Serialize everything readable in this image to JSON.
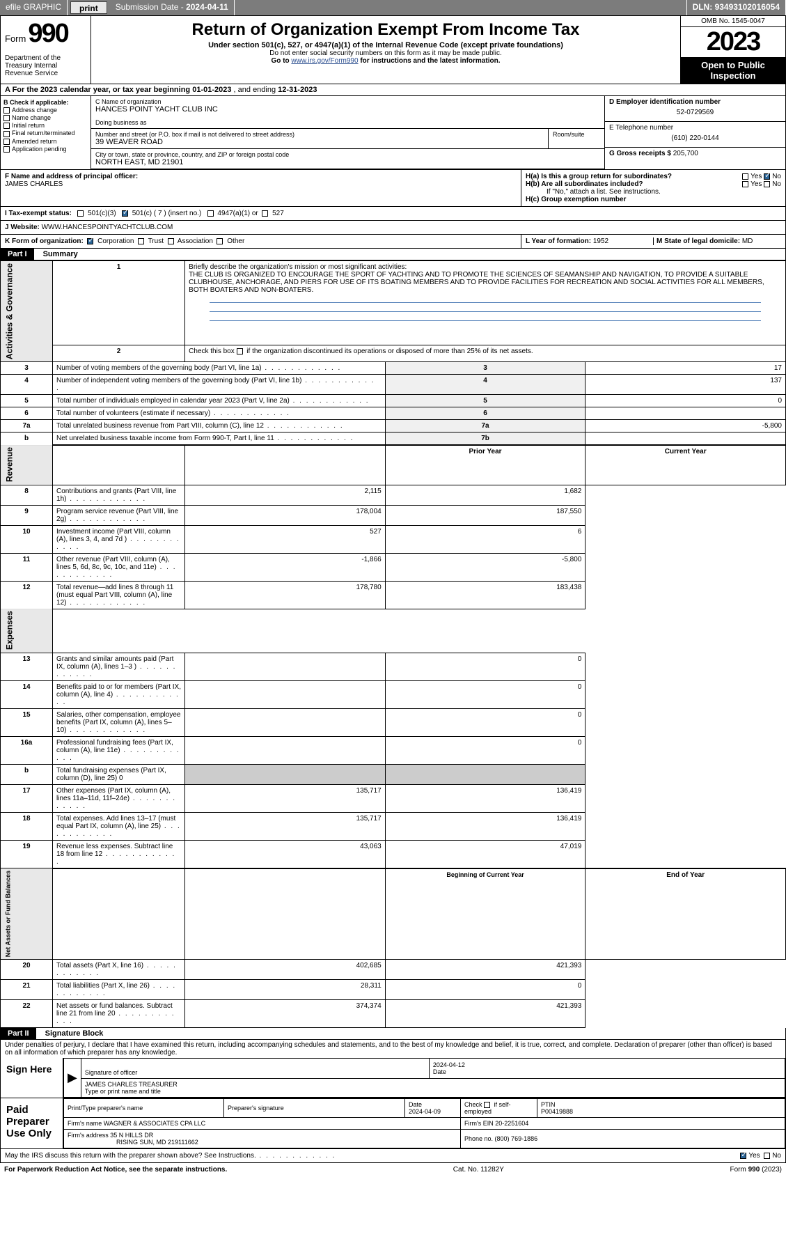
{
  "topbar": {
    "efile": "efile GRAPHIC",
    "print": "print",
    "sub_label": "Submission Date - ",
    "sub_date": "2024-04-11",
    "dln_label": "DLN: ",
    "dln": "93493102016054"
  },
  "header": {
    "form_word": "Form",
    "form_num": "990",
    "dept": "Department of the Treasury\nInternal Revenue Service",
    "title": "Return of Organization Exempt From Income Tax",
    "sub1": "Under section 501(c), 527, or 4947(a)(1) of the Internal Revenue Code (except private foundations)",
    "sub2": "Do not enter social security numbers on this form as it may be made public.",
    "sub3_pre": "Go to ",
    "sub3_link": "www.irs.gov/Form990",
    "sub3_post": " for instructions and the latest information.",
    "omb": "OMB No. 1545-0047",
    "year": "2023",
    "open": "Open to Public Inspection"
  },
  "line_a": {
    "text": "A For the 2023 calendar year, or tax year beginning ",
    "begin": "01-01-2023",
    "mid": " , and ending ",
    "end": "12-31-2023"
  },
  "col_b": {
    "hdr": "B Check if applicable:",
    "items": [
      "Address change",
      "Name change",
      "Initial return",
      "Final return/terminated",
      "Amended return",
      "Application pending"
    ]
  },
  "col_c": {
    "name_label": "C Name of organization",
    "name": "HANCES POINT YACHT CLUB INC",
    "dba_label": "Doing business as",
    "dba": "",
    "addr_label": "Number and street (or P.O. box if mail is not delivered to street address)",
    "room_label": "Room/suite",
    "addr": "39 WEAVER ROAD",
    "city_label": "City or town, state or province, country, and ZIP or foreign postal code",
    "city": "NORTH EAST, MD  21901"
  },
  "col_d": {
    "ein_label": "D Employer identification number",
    "ein": "52-0729569",
    "tel_label": "E Telephone number",
    "tel": "(610) 220-0144",
    "gross_label": "G Gross receipts $ ",
    "gross": "205,700"
  },
  "f_block": {
    "label": "F Name and address of principal officer:",
    "name": "JAMES CHARLES"
  },
  "h_block": {
    "a_label": "H(a)  Is this a group return for subordinates?",
    "b_label": "H(b)  Are all subordinates included?",
    "b_note": "If \"No,\" attach a list. See instructions.",
    "c_label": "H(c)  Group exemption number ",
    "yes": "Yes",
    "no": "No"
  },
  "i_row": {
    "label": "I   Tax-exempt status:",
    "o1": "501(c)(3)",
    "o2": "501(c) ( 7 ) (insert no.)",
    "o3": "4947(a)(1) or",
    "o4": "527"
  },
  "j_row": {
    "label": "J   Website: ",
    "val": "WWW.HANCESPOINTYACHTCLUB.COM"
  },
  "k_row": {
    "label": "K Form of organization:",
    "o1": "Corporation",
    "o2": "Trust",
    "o3": "Association",
    "o4": "Other"
  },
  "l_row": {
    "label": "L Year of formation: ",
    "val": "1952"
  },
  "m_row": {
    "label": "M State of legal domicile: ",
    "val": "MD"
  },
  "part1": {
    "hdr": "Part I",
    "title": "Summary",
    "q1_label": "Briefly describe the organization's mission or most significant activities:",
    "q1_text": "THE CLUB IS ORGANIZED TO ENCOURAGE THE SPORT OF YACHTING AND TO PROMOTE THE SCIENCES OF SEAMANSHIP AND NAVIGATION, TO PROVIDE A SUITABLE CLUBHOUSE, ANCHORAGE, AND PIERS FOR USE OF ITS BOATING MEMBERS AND TO PROVIDE FACILITIES FOR RECREATION AND SOCIAL ACTIVITIES FOR ALL MEMBERS, BOTH BOATERS AND NON-BOATERS.",
    "q2": "Check this box      if the organization discontinued its operations or disposed of more than 25% of its net assets.",
    "rows_gov": [
      {
        "n": "3",
        "t": "Number of voting members of the governing body (Part VI, line 1a)",
        "box": "3",
        "v": "17"
      },
      {
        "n": "4",
        "t": "Number of independent voting members of the governing body (Part VI, line 1b)",
        "box": "4",
        "v": "137"
      },
      {
        "n": "5",
        "t": "Total number of individuals employed in calendar year 2023 (Part V, line 2a)",
        "box": "5",
        "v": "0"
      },
      {
        "n": "6",
        "t": "Total number of volunteers (estimate if necessary)",
        "box": "6",
        "v": ""
      },
      {
        "n": "7a",
        "t": "Total unrelated business revenue from Part VIII, column (C), line 12",
        "box": "7a",
        "v": "-5,800"
      },
      {
        "n": "b",
        "t": "Net unrelated business taxable income from Form 990-T, Part I, line 11",
        "box": "7b",
        "v": ""
      }
    ],
    "col_hdr": {
      "prior": "Prior Year",
      "current": "Current Year"
    },
    "rows_rev": [
      {
        "n": "8",
        "t": "Contributions and grants (Part VIII, line 1h)",
        "p": "2,115",
        "c": "1,682"
      },
      {
        "n": "9",
        "t": "Program service revenue (Part VIII, line 2g)",
        "p": "178,004",
        "c": "187,550"
      },
      {
        "n": "10",
        "t": "Investment income (Part VIII, column (A), lines 3, 4, and 7d )",
        "p": "527",
        "c": "6"
      },
      {
        "n": "11",
        "t": "Other revenue (Part VIII, column (A), lines 5, 6d, 8c, 9c, 10c, and 11e)",
        "p": "-1,866",
        "c": "-5,800"
      },
      {
        "n": "12",
        "t": "Total revenue—add lines 8 through 11 (must equal Part VIII, column (A), line 12)",
        "p": "178,780",
        "c": "183,438"
      }
    ],
    "rows_exp": [
      {
        "n": "13",
        "t": "Grants and similar amounts paid (Part IX, column (A), lines 1–3 )",
        "p": "",
        "c": "0"
      },
      {
        "n": "14",
        "t": "Benefits paid to or for members (Part IX, column (A), line 4)",
        "p": "",
        "c": "0"
      },
      {
        "n": "15",
        "t": "Salaries, other compensation, employee benefits (Part IX, column (A), lines 5–10)",
        "p": "",
        "c": "0"
      },
      {
        "n": "16a",
        "t": "Professional fundraising fees (Part IX, column (A), line 11e)",
        "p": "",
        "c": "0"
      },
      {
        "n": "b",
        "t": "Total fundraising expenses (Part IX, column (D), line 25) 0",
        "p": null,
        "c": null
      },
      {
        "n": "17",
        "t": "Other expenses (Part IX, column (A), lines 11a–11d, 11f–24e)",
        "p": "135,717",
        "c": "136,419"
      },
      {
        "n": "18",
        "t": "Total expenses. Add lines 13–17 (must equal Part IX, column (A), line 25)",
        "p": "135,717",
        "c": "136,419"
      },
      {
        "n": "19",
        "t": "Revenue less expenses. Subtract line 18 from line 12",
        "p": "43,063",
        "c": "47,019"
      }
    ],
    "col_hdr2": {
      "prior": "Beginning of Current Year",
      "current": "End of Year"
    },
    "rows_net": [
      {
        "n": "20",
        "t": "Total assets (Part X, line 16)",
        "p": "402,685",
        "c": "421,393"
      },
      {
        "n": "21",
        "t": "Total liabilities (Part X, line 26)",
        "p": "28,311",
        "c": "0"
      },
      {
        "n": "22",
        "t": "Net assets or fund balances. Subtract line 21 from line 20",
        "p": "374,374",
        "c": "421,393"
      }
    ],
    "vlabels": {
      "gov": "Activities & Governance",
      "rev": "Revenue",
      "exp": "Expenses",
      "net": "Net Assets or Fund Balances"
    }
  },
  "part2": {
    "hdr": "Part II",
    "title": "Signature Block",
    "decl": "Under penalties of perjury, I declare that I have examined this return, including accompanying schedules and statements, and to the best of my knowledge and belief, it is true, correct, and complete. Declaration of preparer (other than officer) is based on all information of which preparer has any knowledge.",
    "sign_here": "Sign Here",
    "sig_officer": "Signature of officer",
    "sig_name": "JAMES CHARLES  TREASURER",
    "sig_type": "Type or print name and title",
    "date_label": "Date",
    "sig_date": "2024-04-12",
    "paid": "Paid Preparer Use Only",
    "prep_name_label": "Print/Type preparer's name",
    "prep_sig_label": "Preparer's signature",
    "prep_date": "2024-04-09",
    "self_emp": "Check        if self-employed",
    "ptin_label": "PTIN",
    "ptin": "P00419888",
    "firm_name_label": "Firm's name   ",
    "firm_name": "WAGNER & ASSOCIATES CPA LLC",
    "firm_ein_label": "Firm's EIN  ",
    "firm_ein": "20-2251604",
    "firm_addr_label": "Firm's address ",
    "firm_addr": "35 N HILLS DR",
    "firm_city": "RISING SUN, MD  219111662",
    "phone_label": "Phone no. ",
    "phone": "(800) 769-1886",
    "discuss": "May the IRS discuss this return with the preparer shown above? See Instructions.",
    "yes": "Yes",
    "no": "No"
  },
  "footer": {
    "pra": "For Paperwork Reduction Act Notice, see the separate instructions.",
    "cat": "Cat. No. 11282Y",
    "form": "Form 990 (2023)"
  }
}
